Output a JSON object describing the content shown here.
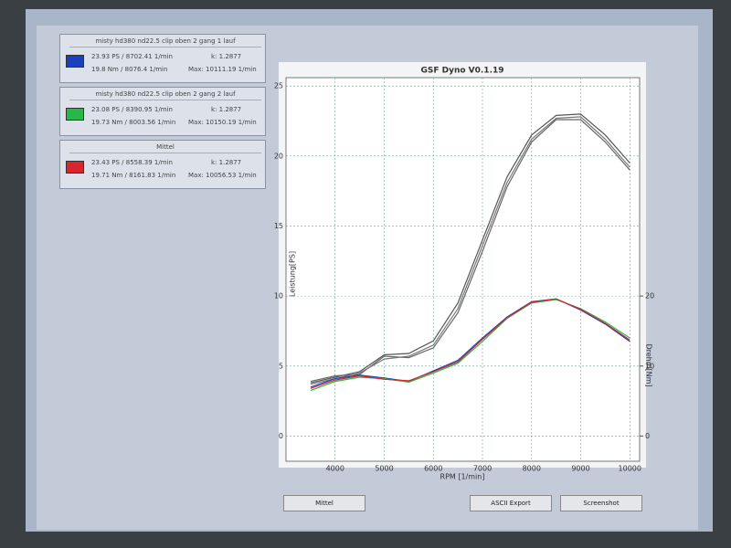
{
  "runs": [
    {
      "name": "misty hd380 nd22.5 clip oben 2 gang 1 lauf",
      "power": "23.93 PS / 8702.41 1/min",
      "k": "k: 1.2877",
      "torque": "19.8 Nm / 8076.4 1/min",
      "max": "Max: 10111.19 1/min",
      "color": "#1c3fc0"
    },
    {
      "name": "misty hd380 nd22.5 clip oben 2 gang 2 lauf",
      "power": "23.08 PS / 8390.95 1/min",
      "k": "k: 1.2877",
      "torque": "19.73 Nm / 8003.56 1/min",
      "max": "Max: 10150.19 1/min",
      "color": "#27b84a"
    },
    {
      "name": "Mittel",
      "power": "23.43 PS / 8558.39 1/min",
      "k": "k: 1.2877",
      "torque": "19.71 Nm / 8161.83 1/min",
      "max": "Max: 10056.53 1/min",
      "color": "#d8252e"
    }
  ],
  "buttons": [
    "Mittel",
    "ASCII Export",
    "Screenshot"
  ],
  "chart_data": {
    "type": "line",
    "title": "GSF Dyno V0.1.19",
    "x_label": "RPM [1/min]",
    "y_label": "Leistung[PS]",
    "y2_label": "Drehm[Nm]",
    "x": [
      3500,
      4000,
      4500,
      5000,
      5500,
      6000,
      6500,
      7000,
      7500,
      8000,
      8500,
      9000,
      9500,
      10000
    ],
    "xlim": [
      3000,
      10200
    ],
    "xticks": [
      4000,
      5000,
      6000,
      7000,
      8000,
      9000,
      10000
    ],
    "ylim": [
      -1.8,
      25.6
    ],
    "yticks": [
      0,
      5,
      10,
      15,
      20,
      25
    ],
    "y2lim": [
      -3.6,
      51.2
    ],
    "y2ticks": [
      0,
      10,
      20
    ],
    "grid": true,
    "series": [
      {
        "color": "#555555",
        "values": [
          3.8,
          4.2,
          4.6,
          5.8,
          5.9,
          6.8,
          9.5,
          14,
          18.5,
          21.5,
          22.9,
          23,
          21.5,
          19.5
        ]
      },
      {
        "color": "#666666",
        "values": [
          3.9,
          4.3,
          4.4,
          5.7,
          5.6,
          6.3,
          8.8,
          13.2,
          17.8,
          21,
          22.6,
          22.6,
          21,
          19
        ]
      },
      {
        "color": "#777777",
        "values": [
          3.7,
          4.1,
          4.5,
          5.5,
          5.7,
          6.5,
          9.1,
          13.6,
          18.1,
          21.2,
          22.7,
          22.8,
          21.2,
          19.2
        ]
      },
      {
        "color": "#1c3fc0",
        "axis": "y2",
        "values": [
          7,
          8.2,
          8.7,
          8.3,
          7.8,
          9.3,
          10.8,
          14,
          17,
          19.2,
          19.6,
          18,
          16,
          13.5
        ]
      },
      {
        "color": "#27b84a",
        "axis": "y2",
        "values": [
          6.5,
          7.8,
          8.4,
          8.2,
          7.7,
          9,
          10.4,
          13.5,
          16.8,
          19,
          19.5,
          18.2,
          16.3,
          14
        ]
      },
      {
        "color": "#d8252e",
        "axis": "y2",
        "values": [
          6.8,
          8,
          8.6,
          8.1,
          7.9,
          9.2,
          10.6,
          13.8,
          16.9,
          19.1,
          19.6,
          18.1,
          16.1,
          13.7
        ]
      }
    ]
  }
}
